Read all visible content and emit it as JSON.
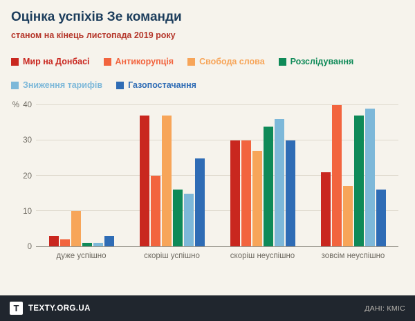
{
  "header": {
    "title": "Оцінка успіхів Зе команди",
    "subtitle": "станом на кінець листопада 2019 року"
  },
  "chart_data": {
    "type": "bar",
    "title": "Оцінка успіхів Зе команди",
    "subtitle": "станом на кінець листопада 2019 року",
    "categories": [
      "дуже успішно",
      "скоріш успішно",
      "скоріш неуспішно",
      "зовсім неуспішно"
    ],
    "series": [
      {
        "name": "Мир на Донбасі",
        "color": "#c9271f",
        "values": [
          3,
          37,
          30,
          21
        ]
      },
      {
        "name": "Антикорупція",
        "color": "#f2643e",
        "values": [
          2,
          20,
          30,
          40
        ]
      },
      {
        "name": "Свобода слова",
        "color": "#f7a559",
        "values": [
          10,
          37,
          27,
          17
        ]
      },
      {
        "name": "Розслідування",
        "color": "#0f8a58",
        "values": [
          1,
          16,
          34,
          37
        ]
      },
      {
        "name": "Зниження тарифів",
        "color": "#7db8d9",
        "values": [
          1,
          15,
          36,
          39
        ]
      },
      {
        "name": "Газопостачання",
        "color": "#2f6cb5",
        "values": [
          3,
          25,
          30,
          16
        ]
      }
    ],
    "ylabel": "%",
    "yticks": [
      0,
      10,
      20,
      30,
      40
    ],
    "ylim": [
      0,
      40
    ],
    "grid": true,
    "legend_position": "top",
    "legend_items_per_row": 4
  },
  "footer": {
    "logo_letter": "Т",
    "brand": "TEXTY.ORG.UA",
    "source": "ДАНІ: КМІС"
  }
}
